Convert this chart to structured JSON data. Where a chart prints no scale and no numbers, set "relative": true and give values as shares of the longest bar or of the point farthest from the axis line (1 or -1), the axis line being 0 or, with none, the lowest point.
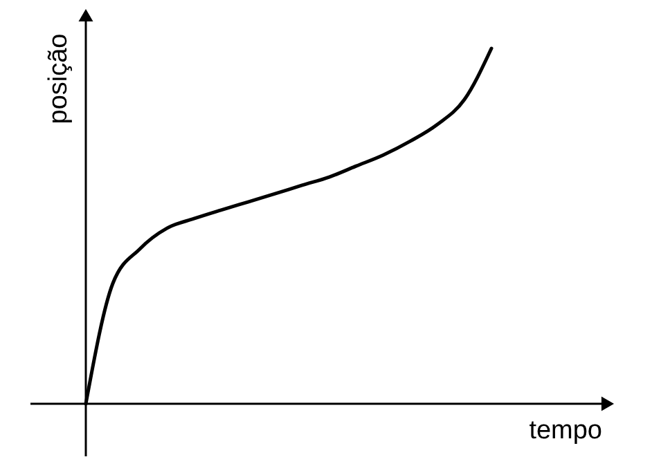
{
  "chart_data": {
    "type": "line",
    "relative": true,
    "xlabel": "tempo",
    "ylabel": "posição",
    "categories": [
      null,
      null,
      null,
      null,
      null,
      null,
      null,
      null,
      null,
      null,
      null,
      null,
      null,
      null,
      null,
      null
    ],
    "series": [
      {
        "color": "#000000",
        "values": [
          0,
          0.339,
          0.436,
          0.494,
          0.521,
          0.545,
          0.568,
          0.591,
          0.615,
          0.638,
          0.669,
          0.7,
          0.739,
          0.786,
          0.856,
          1
        ]
      }
    ],
    "marker": "none",
    "line_style": "solid"
  }
}
